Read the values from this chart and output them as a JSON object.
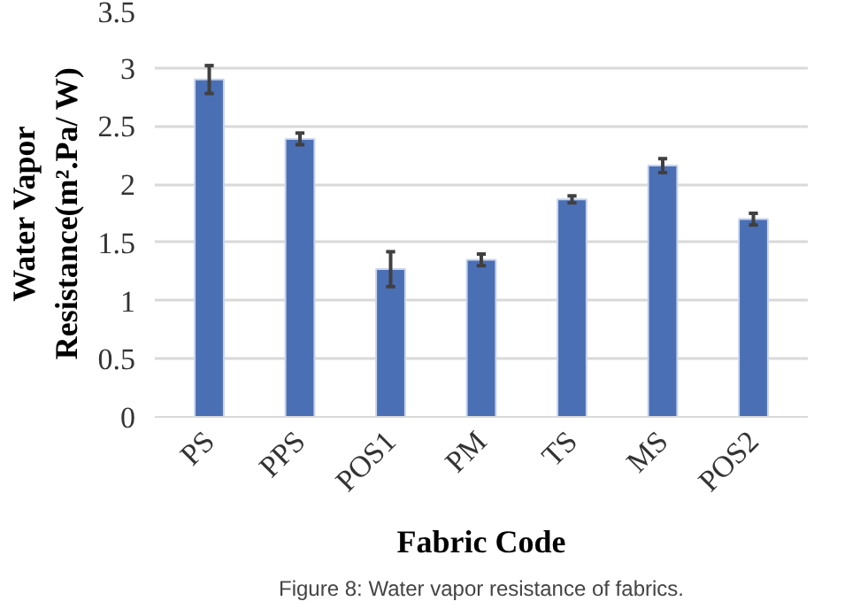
{
  "chart_data": {
    "type": "bar",
    "xlabel": "Fabric Code",
    "ylabel": "Water Vapor\nResistance(m².Pa/ W)",
    "categories": [
      "PS",
      "PPS",
      "POS1",
      "PM",
      "TS",
      "MS",
      "POS2"
    ],
    "series": [
      {
        "color": "#4a6fb5",
        "values": [
          2.9,
          2.39,
          1.27,
          1.35,
          1.87,
          2.16,
          1.7
        ],
        "errors": [
          0.12,
          0.05,
          0.15,
          0.05,
          0.03,
          0.06,
          0.05
        ]
      }
    ],
    "ylim": [
      0,
      3.5
    ],
    "yticks": [
      0,
      0.5,
      1,
      1.5,
      2,
      2.5,
      3,
      3.5
    ],
    "grid": "y",
    "annotations": [
      "Figure 8: Water vapor resistance of fabrics."
    ]
  }
}
